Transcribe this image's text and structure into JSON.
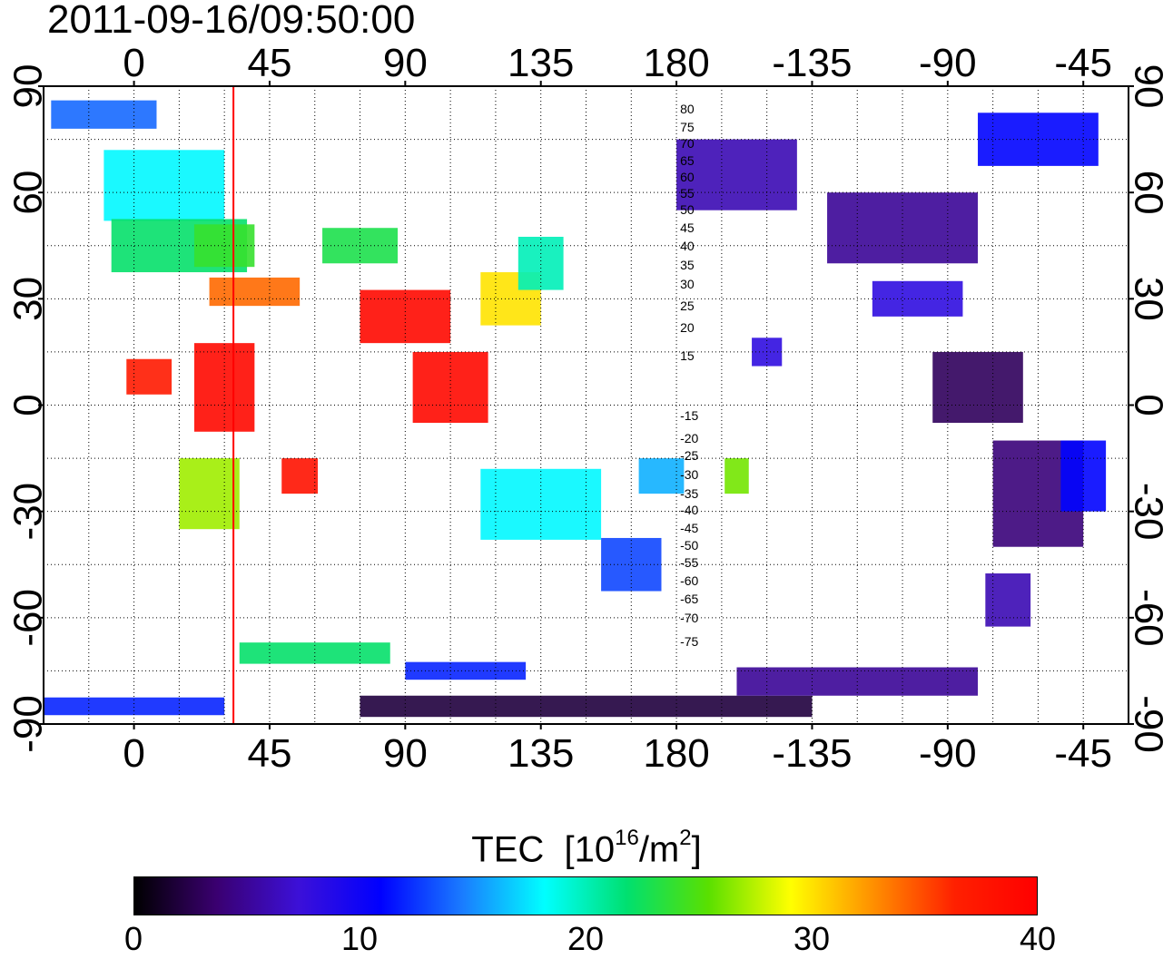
{
  "title": "2011-09-16/09:50:00",
  "map": {
    "projection": "equirectangular",
    "lon_center": 150,
    "lon_ticks": [
      0,
      45,
      90,
      135,
      180,
      -135,
      -90,
      -45
    ],
    "lat_ticks": [
      90,
      60,
      30,
      0,
      -30,
      -60,
      -90
    ],
    "lon_labels": [
      "0",
      "45",
      "90",
      "135",
      "180",
      "-135",
      "-90",
      "-45"
    ],
    "lat_labels": [
      "90",
      "60",
      "30",
      "0",
      "-30",
      "-60",
      "-90"
    ],
    "grid": "dotted, every 15 degrees",
    "marker_line_lon": 33,
    "marker_line_color": "#ff0000",
    "contour_labels": [
      "80",
      "75",
      "70",
      "65",
      "60",
      "55",
      "50",
      "45",
      "40",
      "35",
      "30",
      "25",
      "20",
      "15",
      "-15",
      "-20",
      "-25",
      "-30",
      "-35",
      "-40",
      "-45",
      "-50",
      "-55",
      "-60",
      "-65",
      "-70",
      "-75"
    ],
    "tec_clusters": [
      {
        "lon": -10,
        "lat": 82,
        "w": 35,
        "h": 8,
        "tec": 14
      },
      {
        "lon": 10,
        "lat": 62,
        "w": 40,
        "h": 20,
        "tec": 18
      },
      {
        "lon": 15,
        "lat": 45,
        "w": 45,
        "h": 15,
        "tec": 22
      },
      {
        "lon": 40,
        "lat": 32,
        "w": 30,
        "h": 8,
        "tec": 34
      },
      {
        "lon": 30,
        "lat": 45,
        "w": 20,
        "h": 12,
        "tec": 24
      },
      {
        "lon": 5,
        "lat": 8,
        "w": 15,
        "h": 10,
        "tec": 37
      },
      {
        "lon": 30,
        "lat": 5,
        "w": 20,
        "h": 25,
        "tec": 39
      },
      {
        "lon": 25,
        "lat": -25,
        "w": 20,
        "h": 20,
        "tec": 27
      },
      {
        "lon": 55,
        "lat": -20,
        "w": 12,
        "h": 10,
        "tec": 38
      },
      {
        "lon": 75,
        "lat": 45,
        "w": 25,
        "h": 10,
        "tec": 23
      },
      {
        "lon": 90,
        "lat": 25,
        "w": 30,
        "h": 15,
        "tec": 39
      },
      {
        "lon": 105,
        "lat": 5,
        "w": 25,
        "h": 20,
        "tec": 39
      },
      {
        "lon": 125,
        "lat": 30,
        "w": 20,
        "h": 15,
        "tec": 30
      },
      {
        "lon": 135,
        "lat": 40,
        "w": 15,
        "h": 15,
        "tec": 20
      },
      {
        "lon": 135,
        "lat": -28,
        "w": 40,
        "h": 20,
        "tec": 18
      },
      {
        "lon": 165,
        "lat": -45,
        "w": 20,
        "h": 15,
        "tec": 13
      },
      {
        "lon": 175,
        "lat": -20,
        "w": 15,
        "h": 10,
        "tec": 16
      },
      {
        "lon": -160,
        "lat": 65,
        "w": 40,
        "h": 20,
        "tec": 6
      },
      {
        "lon": -105,
        "lat": 50,
        "w": 50,
        "h": 20,
        "tec": 5
      },
      {
        "lon": -100,
        "lat": 30,
        "w": 30,
        "h": 10,
        "tec": 8
      },
      {
        "lon": -60,
        "lat": 75,
        "w": 40,
        "h": 15,
        "tec": 11
      },
      {
        "lon": -80,
        "lat": 5,
        "w": 30,
        "h": 20,
        "tec": 3
      },
      {
        "lon": -60,
        "lat": -25,
        "w": 30,
        "h": 30,
        "tec": 4
      },
      {
        "lon": -45,
        "lat": -20,
        "w": 15,
        "h": 20,
        "tec": 11
      },
      {
        "lon": -70,
        "lat": -55,
        "w": 15,
        "h": 15,
        "tec": 6
      },
      {
        "lon": 150,
        "lat": -85,
        "w": 150,
        "h": 6,
        "tec": 2
      },
      {
        "lon": -120,
        "lat": -78,
        "w": 80,
        "h": 8,
        "tec": 5
      },
      {
        "lon": 0,
        "lat": -85,
        "w": 60,
        "h": 5,
        "tec": 12
      },
      {
        "lon": 60,
        "lat": -70,
        "w": 50,
        "h": 6,
        "tec": 22
      },
      {
        "lon": 110,
        "lat": -75,
        "w": 40,
        "h": 5,
        "tec": 12
      },
      {
        "lon": -150,
        "lat": 15,
        "w": 10,
        "h": 8,
        "tec": 8
      },
      {
        "lon": -160,
        "lat": -20,
        "w": 8,
        "h": 10,
        "tec": 26
      }
    ]
  },
  "colorbar": {
    "title": "TEC",
    "unit_base": "[10",
    "unit_exp": "16",
    "unit_mid": "/m",
    "unit_exp2": "2",
    "unit_close": "]",
    "min": 0,
    "max": 40,
    "tick_labels": [
      "0",
      "10",
      "20",
      "30",
      "40"
    ],
    "colormap": [
      "#000000",
      "#3a0070",
      "#3c10d8",
      "#0000ff",
      "#1a7cff",
      "#00ffff",
      "#00e070",
      "#5ae000",
      "#ffff00",
      "#ff9000",
      "#ff2000",
      "#ff0000"
    ]
  }
}
